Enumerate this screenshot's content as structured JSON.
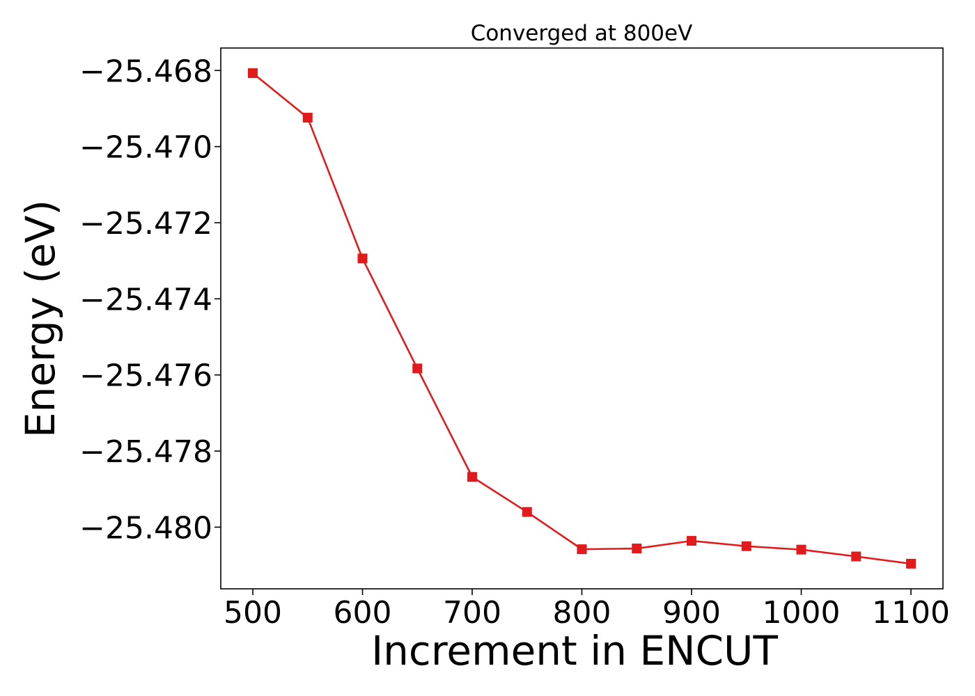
{
  "chart_data": {
    "type": "line",
    "title": "Converged at 800eV",
    "xlabel": "Increment in ENCUT",
    "ylabel": "Energy (eV)",
    "x": [
      500,
      550,
      600,
      650,
      700,
      750,
      800,
      850,
      900,
      950,
      1000,
      1050,
      1100
    ],
    "series": [
      {
        "values": [
          -25.46807,
          -25.46924,
          -25.47294,
          -25.47583,
          -25.47868,
          -25.4796,
          -25.48058,
          -25.48056,
          -25.48036,
          -25.4805,
          -25.48059,
          -25.48077,
          -25.48096
        ],
        "color": "#e31a1c",
        "marker": "square"
      }
    ],
    "xticks": [
      500,
      600,
      700,
      800,
      900,
      1000,
      1100
    ],
    "yticks": [
      -25.468,
      -25.47,
      -25.472,
      -25.474,
      -25.476,
      -25.478,
      -25.48
    ],
    "ytick_labels": [
      "−25.468",
      "−25.470",
      "−25.472",
      "−25.474",
      "−25.476",
      "−25.478",
      "−25.480"
    ],
    "xlim": [
      470.8,
      1129.2
    ],
    "ylim": [
      -25.48162,
      -25.46741
    ],
    "grid": false,
    "legend": "none"
  }
}
